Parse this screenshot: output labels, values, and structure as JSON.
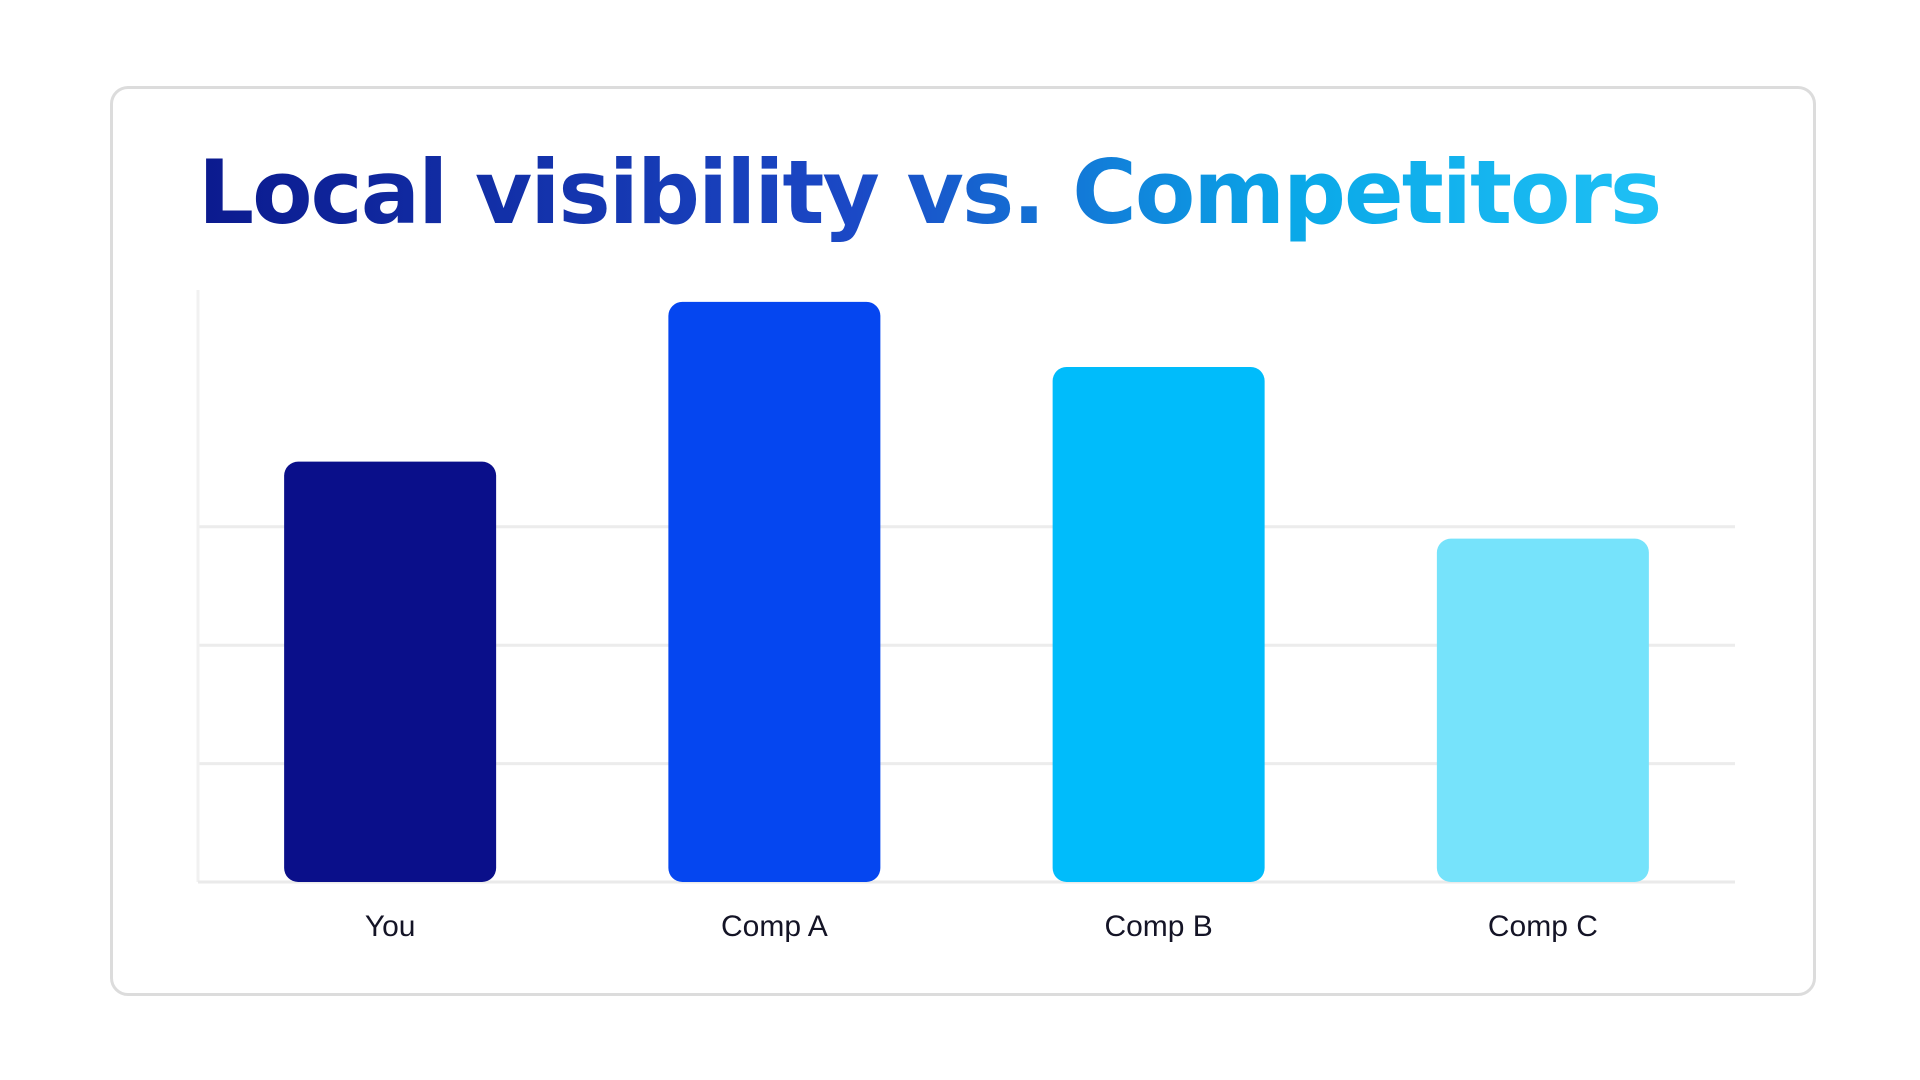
{
  "chart_data": {
    "type": "bar",
    "title": "Local visibility vs. Competitors",
    "xlabel": "",
    "ylabel": "",
    "categories": [
      "You",
      "Comp A",
      "Comp B",
      "Comp C"
    ],
    "values": [
      71,
      98,
      87,
      58
    ],
    "ylim": [
      0,
      100
    ],
    "colors": [
      "#0a0f8a",
      "#0546f0",
      "#00bcfb",
      "#76e3fb"
    ],
    "grid": true,
    "legend": "none"
  }
}
